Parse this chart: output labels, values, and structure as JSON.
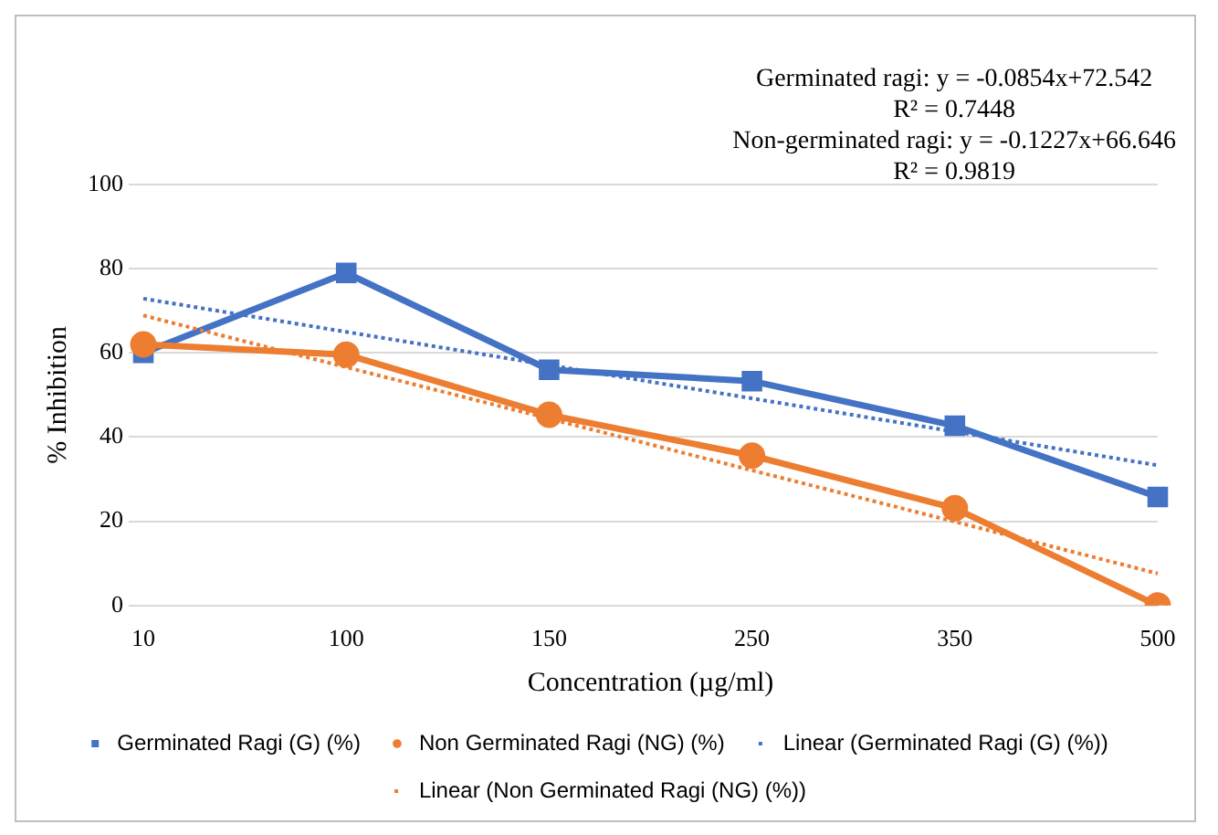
{
  "chart_data": {
    "type": "line",
    "xlabel": "Concentration (µg/ml)",
    "ylabel": "% Inhibition",
    "annotations": [
      "Germinated ragi: y = -0.0854x+72.542",
      "R² = 0.7448",
      "Non-germinated ragi: y = -0.1227x+66.646",
      "R² = 0.9819"
    ],
    "categories": [
      "10",
      "100",
      "150",
      "250",
      "350",
      "500"
    ],
    "series": [
      {
        "name": "Germinated Ragi (G) (%)",
        "color": "#4472c4",
        "marker": "square",
        "line_style": "solid",
        "values": [
          60,
          79,
          56,
          53.3,
          42.7,
          25.8
        ]
      },
      {
        "name": "Non Germinated Ragi (NG) (%)",
        "color": "#ed7d31",
        "marker": "circle",
        "line_style": "solid",
        "values": [
          62,
          59.6,
          45.3,
          35.6,
          23.1,
          0
        ]
      },
      {
        "name": "Linear (Germinated Ragi (G) (%))",
        "color": "#4472c4",
        "marker": "none",
        "line_style": "dotted",
        "values": [
          72.9,
          65.0,
          57.1,
          49.2,
          41.3,
          33.3
        ]
      },
      {
        "name": "Linear (Non Germinated Ragi (NG) (%))",
        "color": "#ed7d31",
        "marker": "none",
        "line_style": "dotted",
        "values": [
          68.9,
          56.6,
          44.4,
          32.1,
          19.9,
          7.6
        ]
      }
    ],
    "ylim": [
      0,
      100
    ],
    "yticks": [
      0,
      20,
      40,
      60,
      80,
      100
    ],
    "grid": "y",
    "legend": "bottom"
  }
}
